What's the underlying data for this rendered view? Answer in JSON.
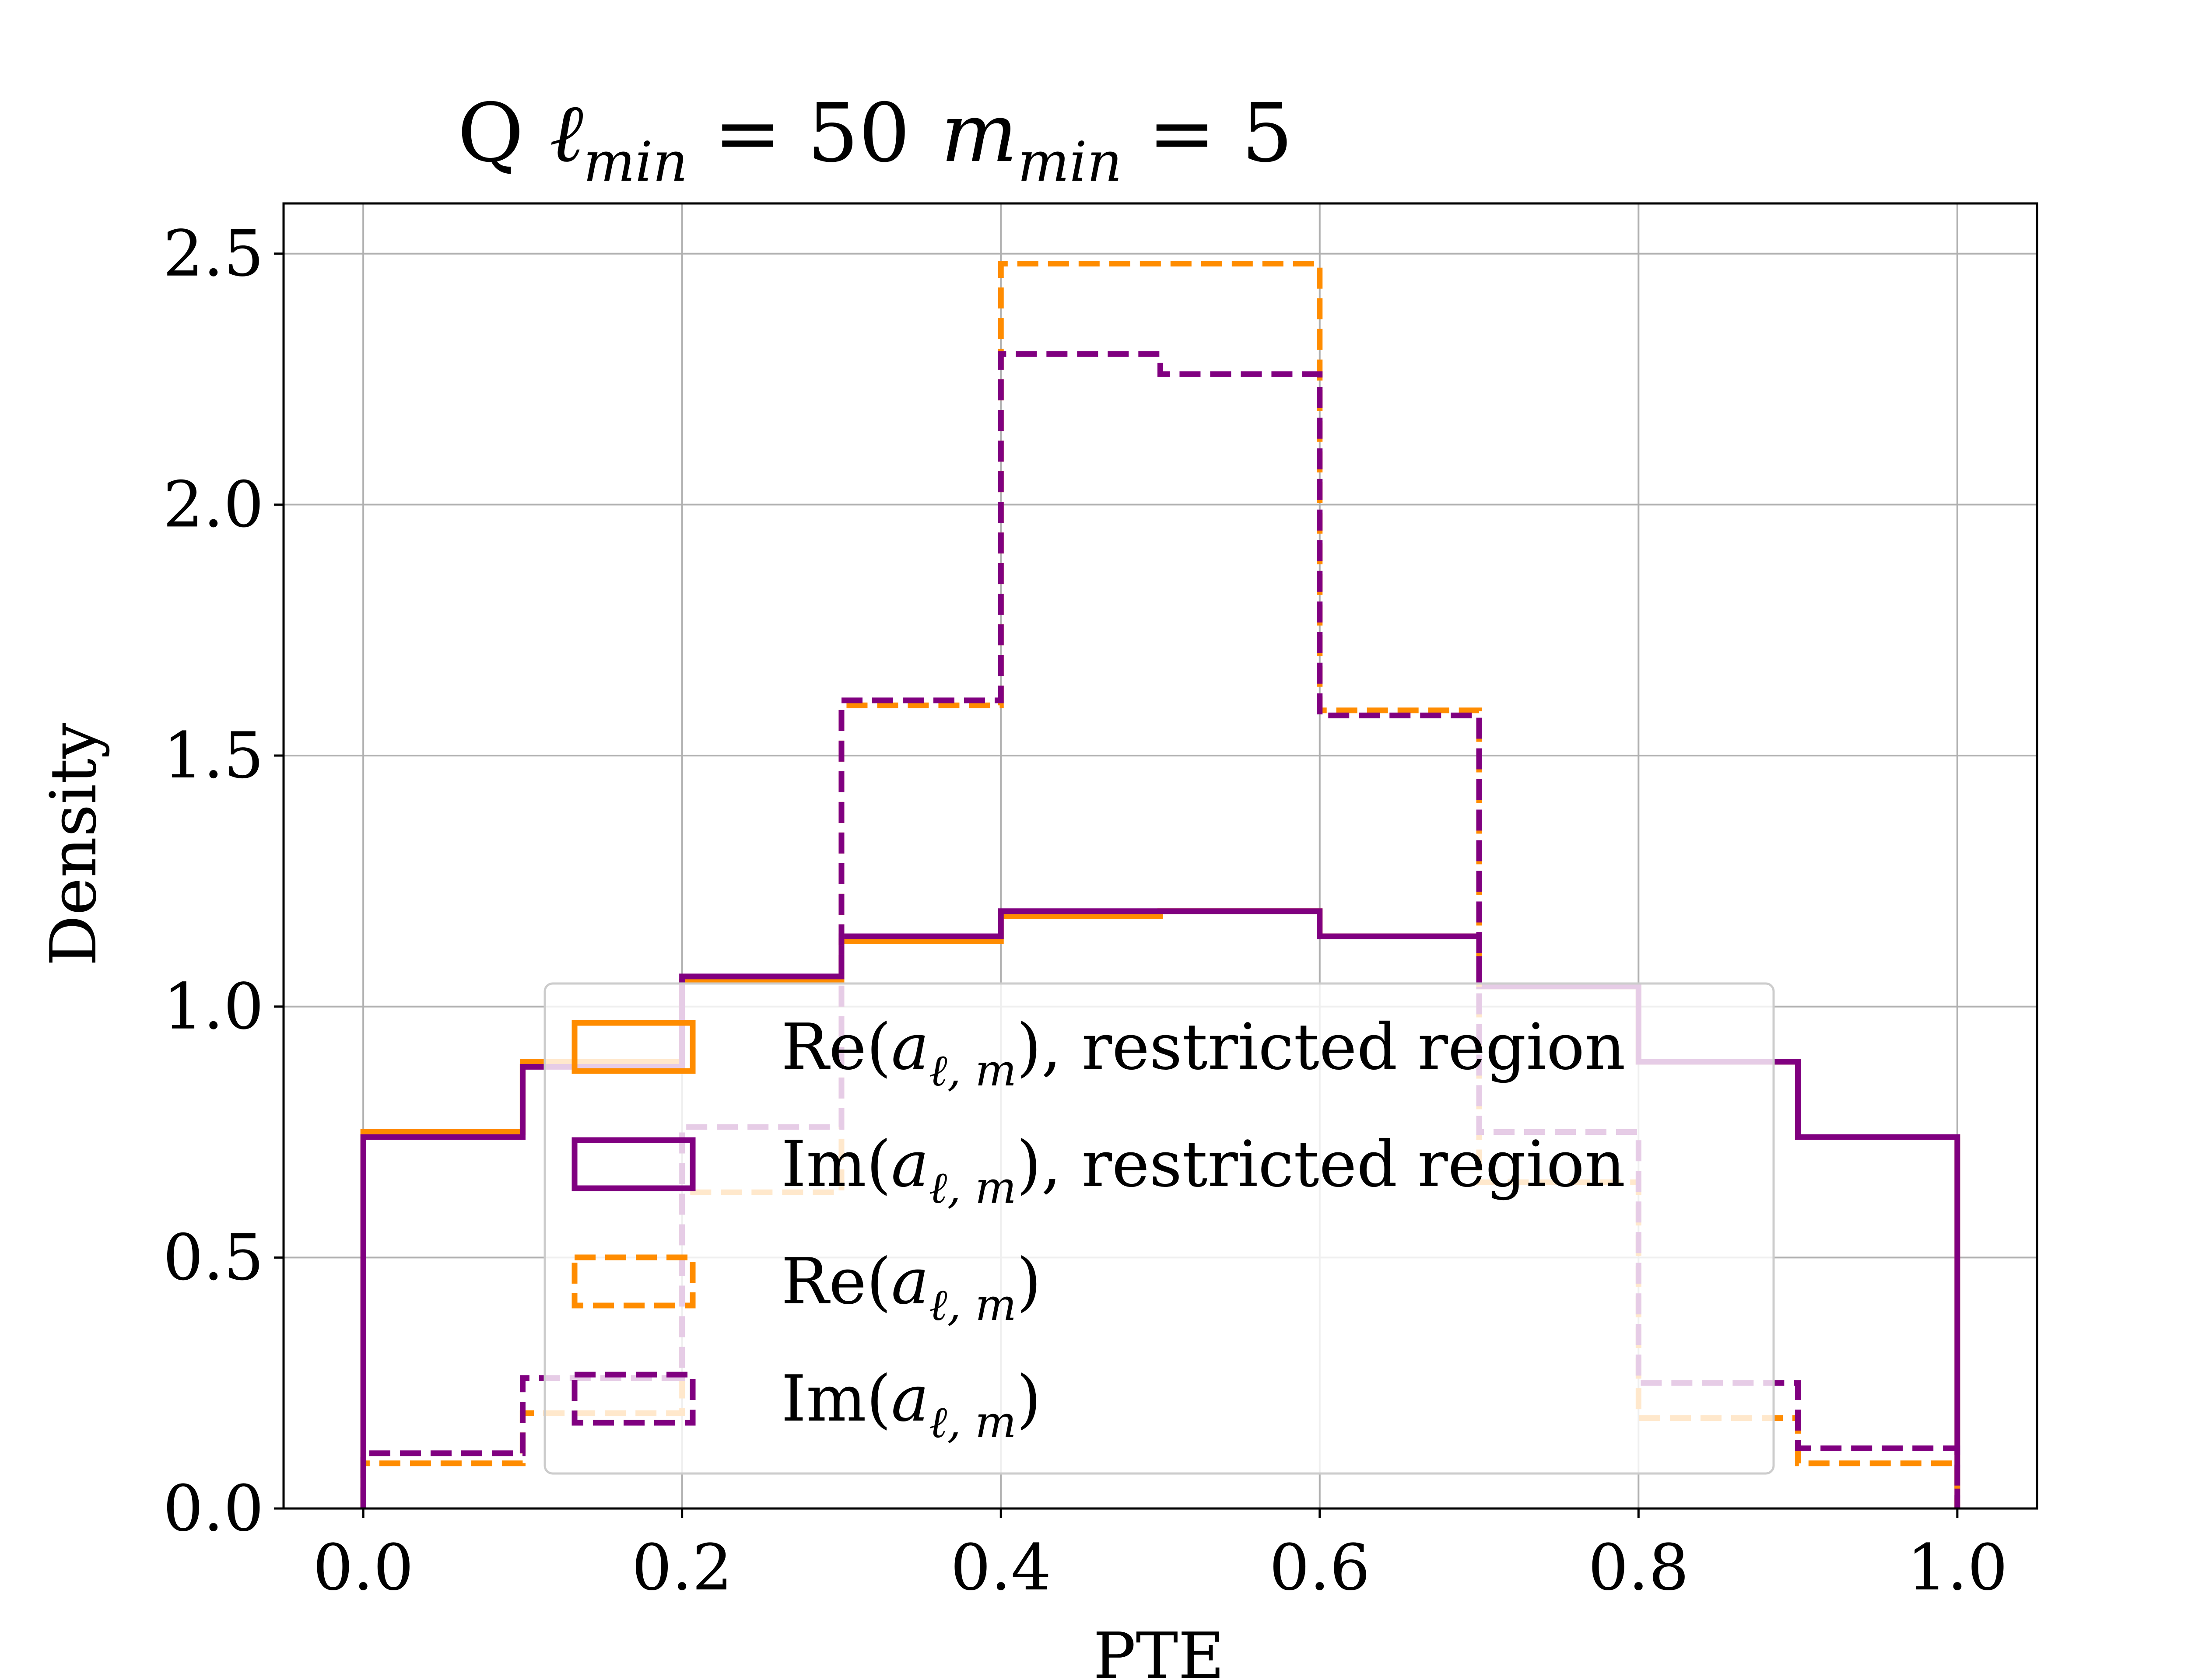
{
  "chart_data": {
    "type": "histogram-step",
    "title": {
      "prefix": "Q ",
      "l_sym": "ℓ",
      "l_sub": "min",
      "l_eq": " = 50",
      "m_sym": "m",
      "m_sub": "min",
      "m_eq": " = 5"
    },
    "xlabel": "PTE",
    "ylabel": "Density",
    "xlim": [
      -0.05,
      1.05
    ],
    "ylim": [
      0,
      2.6
    ],
    "xticks": [
      "0.0",
      "0.2",
      "0.4",
      "0.6",
      "0.8",
      "1.0"
    ],
    "yticks": [
      "0.0",
      "0.5",
      "1.0",
      "1.5",
      "2.0",
      "2.5"
    ],
    "grid": true,
    "legend_position": "lower-center",
    "bin_edges": [
      0.0,
      0.1,
      0.2,
      0.3,
      0.4,
      0.5,
      0.6,
      0.7,
      0.8,
      0.9,
      1.0
    ],
    "series": [
      {
        "label_prefix": "Re(",
        "label_suffix": "), restricted region",
        "color": "#ff8c00",
        "style": "solid",
        "values": [
          0.75,
          0.89,
          1.05,
          1.13,
          1.18,
          1.19,
          1.14,
          1.04,
          0.89,
          0.74
        ]
      },
      {
        "label_prefix": "Im(",
        "label_suffix": "), restricted region",
        "color": "#800080",
        "style": "solid",
        "values": [
          0.74,
          0.88,
          1.06,
          1.14,
          1.19,
          1.19,
          1.14,
          1.04,
          0.89,
          0.74
        ]
      },
      {
        "label_prefix": "Re(",
        "label_suffix": ")",
        "color": "#ff8c00",
        "style": "dashed",
        "values": [
          0.09,
          0.19,
          0.63,
          1.6,
          2.48,
          2.48,
          1.59,
          0.65,
          0.18,
          0.09
        ]
      },
      {
        "label_prefix": "Im(",
        "label_suffix": ")",
        "color": "#800080",
        "style": "dashed",
        "values": [
          0.11,
          0.26,
          0.76,
          1.61,
          2.3,
          2.26,
          1.58,
          0.75,
          0.25,
          0.12
        ]
      }
    ],
    "legend_symbol": {
      "a": "a",
      "sub": "ℓ, m"
    }
  }
}
